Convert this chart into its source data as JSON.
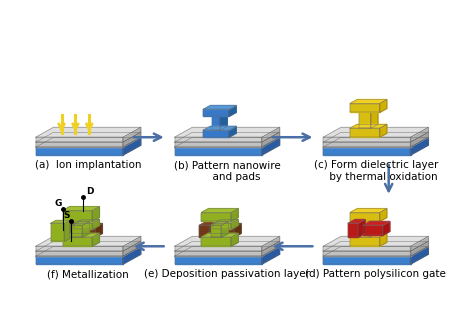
{
  "title": "",
  "background_color": "#ffffff",
  "labels": {
    "a": "(a)  Ion implantation",
    "b": "(b) Pattern nanowire\n      and pads",
    "c": "(c) Form dielectric layer\n     by thermal oxidation",
    "d": "(d) Pattern polysilicon gate",
    "e": "(e) Deposition passivation layer",
    "f": "(f) Metallization"
  },
  "label_fontsize": 7.5,
  "colors": {
    "arrow_color": "#4a6fa5",
    "blue_top": "#4a90d9",
    "blue_base": "#3a7abf",
    "blue_dark": "#2a5a9f",
    "gray_top": "#c8c8c8",
    "gray_side": "#b0b0b0",
    "gray_dark": "#989898",
    "yellow": "#f0d020",
    "yellow_dark": "#d0b000",
    "red": "#cc2020",
    "red_dark": "#aa1010",
    "green": "#80a020",
    "green_bright": "#a0c030",
    "brown": "#804020",
    "brown_dark": "#603010",
    "wire_blue": "#5599dd",
    "ion_yellow": "#f0d020"
  }
}
